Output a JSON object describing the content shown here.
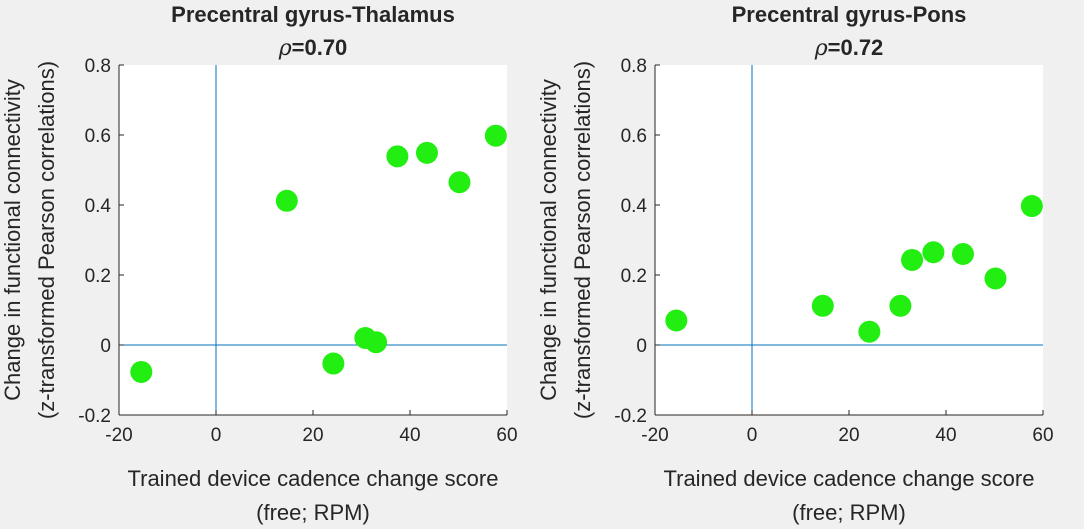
{
  "chart_data": [
    {
      "type": "scatter",
      "title": "Precentral gyrus-Thalamus",
      "subtitle_symbol": "ρ",
      "subtitle_value": "=0.70",
      "xlabel": [
        "Trained device cadence change score",
        "(free; RPM)"
      ],
      "ylabel": [
        "Change in functional connectivity",
        "(z-transformed Pearson correlations)"
      ],
      "xlim": [
        -20,
        60
      ],
      "ylim": [
        -0.2,
        0.8
      ],
      "xticks": [
        -20,
        0,
        20,
        40,
        60
      ],
      "yticks": [
        -0.2,
        0,
        0.2,
        0.4,
        0.6,
        0.8
      ],
      "xtick_labels": [
        "-20",
        "0",
        "20",
        "40",
        "60"
      ],
      "ytick_labels": [
        "-0.2",
        "0",
        "0.2",
        "0.4",
        "0.6",
        "0.8"
      ],
      "reference_lines": {
        "x": 0,
        "y": 0
      },
      "grid": false,
      "marker_color": "#22ee11",
      "line_color": "#0072bd",
      "points": [
        {
          "x": -15.4,
          "y": -0.077
        },
        {
          "x": 14.6,
          "y": 0.412
        },
        {
          "x": 24.2,
          "y": -0.053
        },
        {
          "x": 30.8,
          "y": 0.02
        },
        {
          "x": 33.0,
          "y": 0.008
        },
        {
          "x": 37.4,
          "y": 0.539
        },
        {
          "x": 43.5,
          "y": 0.549
        },
        {
          "x": 50.2,
          "y": 0.465
        },
        {
          "x": 57.7,
          "y": 0.598
        }
      ]
    },
    {
      "type": "scatter",
      "title": "Precentral gyrus-Pons",
      "subtitle_symbol": "ρ",
      "subtitle_value": "=0.72",
      "xlabel": [
        "Trained device cadence change score",
        "(free; RPM)"
      ],
      "ylabel": [
        "Change in functional connectivity",
        "(z-transformed Pearson correlations)"
      ],
      "xlim": [
        -20,
        60
      ],
      "ylim": [
        -0.2,
        0.8
      ],
      "xticks": [
        -20,
        0,
        20,
        40,
        60
      ],
      "yticks": [
        -0.2,
        0,
        0.2,
        0.4,
        0.6,
        0.8
      ],
      "xtick_labels": [
        "-20",
        "0",
        "20",
        "40",
        "60"
      ],
      "ytick_labels": [
        "-0.2",
        "0",
        "0.2",
        "0.4",
        "0.6",
        "0.8"
      ],
      "reference_lines": {
        "x": 0,
        "y": 0
      },
      "grid": false,
      "marker_color": "#22ee11",
      "line_color": "#0072bd",
      "points": [
        {
          "x": -15.6,
          "y": 0.07
        },
        {
          "x": 14.6,
          "y": 0.112
        },
        {
          "x": 24.2,
          "y": 0.038
        },
        {
          "x": 30.6,
          "y": 0.112
        },
        {
          "x": 33.0,
          "y": 0.243
        },
        {
          "x": 37.4,
          "y": 0.265
        },
        {
          "x": 43.5,
          "y": 0.26
        },
        {
          "x": 50.2,
          "y": 0.19
        },
        {
          "x": 57.7,
          "y": 0.397
        }
      ]
    }
  ]
}
